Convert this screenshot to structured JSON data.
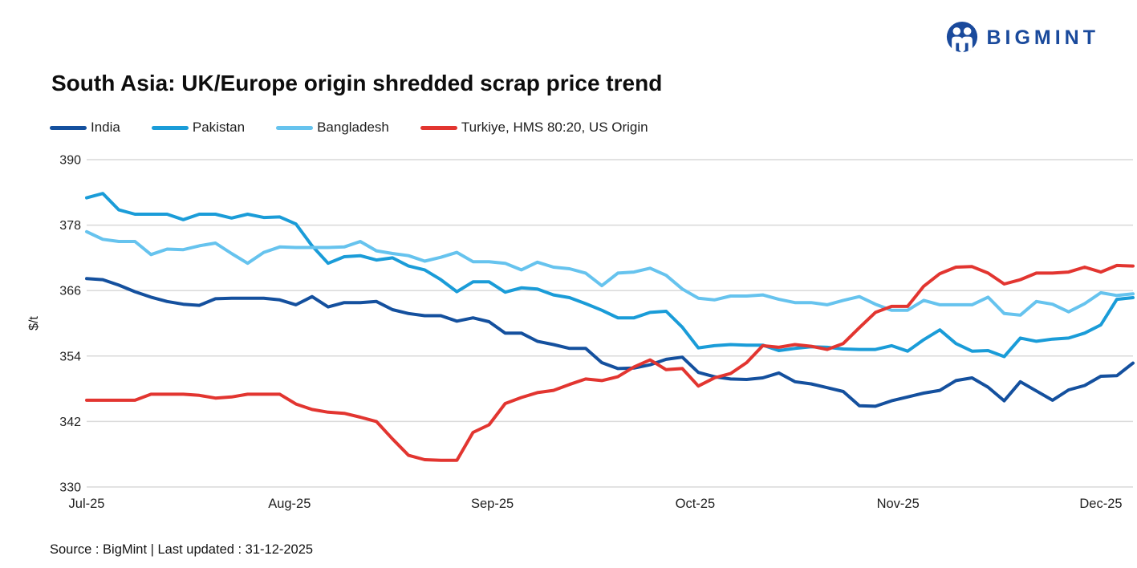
{
  "logo": {
    "text": "BIGMINT",
    "color": "#1a4a9c"
  },
  "title": "South Asia: UK/Europe origin shredded scrap price trend",
  "footer": {
    "text": "Source : BigMint | Last updated : 31-12-2025"
  },
  "colors": {
    "india": "#14509e",
    "pakistan": "#1a9cd8",
    "bangladesh": "#66c3ee",
    "turkiye": "#e23530",
    "gridline": "#d9d9d9",
    "axis_text": "#1f1f1f",
    "logo_blue": "#1a4a9c"
  },
  "chart_data": {
    "type": "line",
    "title": "South Asia: UK/Europe origin shredded scrap price trend",
    "xlabel": "",
    "ylabel": "$/t",
    "ylim": [
      330,
      390
    ],
    "yticks": [
      390,
      378,
      366,
      354,
      342,
      330
    ],
    "x_categories": [
      "Jul-25",
      "Aug-25",
      "Sep-25",
      "Oct-25",
      "Nov-25",
      "Dec-25"
    ],
    "grid": "horizontal",
    "legend_position": "top-left",
    "series": [
      {
        "name": "India",
        "color": "#14509e",
        "values": [
          368.2,
          368,
          367,
          365.8,
          364.8,
          364,
          363.5,
          363.3,
          364.5,
          364.6,
          364.6,
          364.6,
          364.3,
          363.4,
          364.9,
          363,
          363.8,
          363.8,
          364,
          362.5,
          361.8,
          361.4,
          361.4,
          360.4,
          361,
          360.3,
          358.2,
          358.2,
          356.7,
          356.1,
          355.4,
          355.4,
          352.8,
          351.7,
          351.8,
          352.4,
          353.4,
          353.8,
          351,
          350.2,
          349.8,
          349.7,
          350,
          350.9,
          349.3,
          348.9,
          348.2,
          347.5,
          344.9,
          344.8,
          345.8,
          346.5,
          347.2,
          347.7,
          349.5,
          350,
          348.3,
          345.8,
          349.3,
          347.6,
          345.9,
          347.8,
          348.6,
          350.3,
          350.4,
          352.7
        ]
      },
      {
        "name": "Pakistan",
        "color": "#1a9cd8",
        "values": [
          383,
          383.8,
          380.8,
          380,
          380,
          380,
          379,
          380,
          380,
          379.3,
          380,
          379.4,
          379.5,
          378.2,
          374.2,
          371,
          372.2,
          372.4,
          371.6,
          372,
          370.5,
          369.8,
          368,
          365.8,
          367.6,
          367.6,
          365.7,
          366.5,
          366.3,
          365.2,
          364.7,
          363.6,
          362.4,
          361,
          361,
          362,
          362.2,
          359.3,
          355.5,
          355.9,
          356.1,
          356,
          356,
          355,
          355.4,
          355.7,
          355.6,
          355.3,
          355.2,
          355.2,
          355.9,
          354.9,
          357,
          358.8,
          356.3,
          354.9,
          355,
          353.9,
          357.3,
          356.7,
          357.1,
          357.3,
          358.2,
          359.7,
          364.4,
          364.7
        ]
      },
      {
        "name": "Bangladesh",
        "color": "#66c3ee",
        "values": [
          376.8,
          375.4,
          375,
          375,
          372.6,
          373.6,
          373.5,
          374.2,
          374.7,
          372.8,
          371,
          373,
          374,
          373.9,
          373.9,
          373.9,
          374,
          375,
          373.3,
          372.8,
          372.4,
          371.4,
          372.1,
          373,
          371.3,
          371.3,
          371,
          369.8,
          371.2,
          370.3,
          370,
          369.2,
          366.9,
          369.2,
          369.4,
          370.1,
          368.8,
          366.3,
          364.6,
          364.3,
          365,
          365,
          365.2,
          364.4,
          363.8,
          363.8,
          363.4,
          364.2,
          364.9,
          363.5,
          362.4,
          362.4,
          364.2,
          363.4,
          363.4,
          363.4,
          364.8,
          361.8,
          361.5,
          364,
          363.5,
          362.1,
          363.6,
          365.6,
          365.1,
          365.4
        ]
      },
      {
        "name": "Turkiye, HMS 80:20, US Origin",
        "color": "#e23530",
        "values": [
          345.9,
          345.9,
          345.9,
          345.9,
          347,
          347,
          347,
          346.8,
          346.3,
          346.5,
          347,
          347,
          347,
          345.2,
          344.2,
          343.7,
          343.5,
          342.8,
          342,
          338.8,
          335.8,
          335,
          334.9,
          334.9,
          340,
          341.4,
          345.3,
          346.4,
          347.3,
          347.7,
          348.8,
          349.8,
          349.5,
          350.2,
          352,
          353.3,
          351.5,
          351.7,
          348.5,
          350,
          350.8,
          352.8,
          355.9,
          355.6,
          356.1,
          355.8,
          355.2,
          356.3,
          359.2,
          362,
          363.1,
          363.1,
          366.8,
          369.1,
          370.3,
          370.4,
          369.2,
          367.2,
          368,
          369.2,
          369.2,
          369.4,
          370.3,
          369.4,
          370.6,
          370.5
        ]
      }
    ]
  }
}
